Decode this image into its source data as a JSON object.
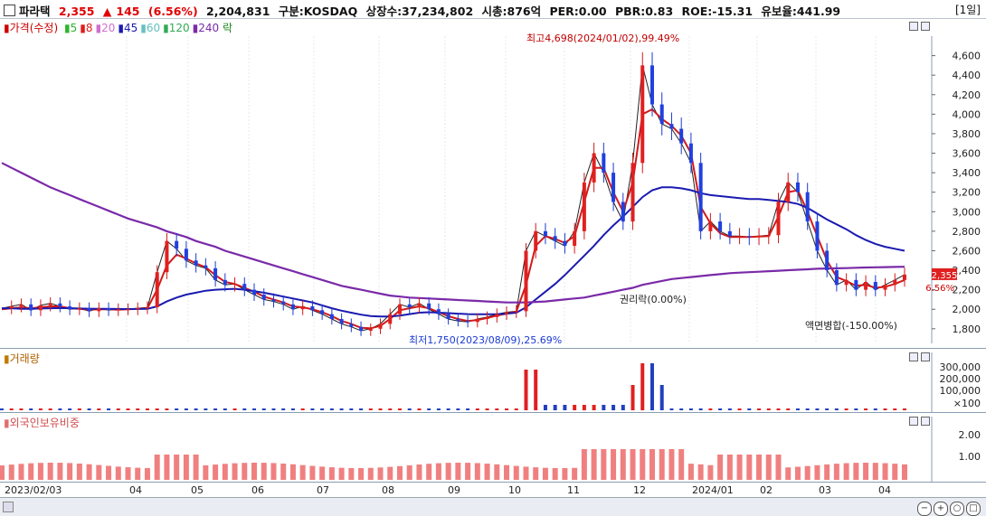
{
  "header": {
    "name": "파라택",
    "price": "2,355",
    "change_arrow": "▲",
    "change": "145",
    "change_pct": "(6.56%)",
    "volume": "2,204,831",
    "market": "구분:KOSDAQ",
    "shares": "상장수:37,234,802",
    "mktcap": "시총:876억",
    "per": "PER:0.00",
    "pbr": "PBR:0.83",
    "roe": "ROE:-15.31",
    "float": "유보율:441.99",
    "timeframe": "[1일]"
  },
  "legend": {
    "price_label": "가격(수정)",
    "ma": [
      {
        "label": "5",
        "color": "#2db52d"
      },
      {
        "label": "8",
        "color": "#e01c1c"
      },
      {
        "label": "20",
        "color": "#d070d0"
      },
      {
        "label": "45",
        "color": "#1a1ab0"
      },
      {
        "label": "60",
        "color": "#66c0c0"
      },
      {
        "label": "120",
        "color": "#33aa55"
      },
      {
        "label": "240",
        "color": "#7a2aa8"
      }
    ],
    "extra": "락"
  },
  "annotations": {
    "high": "최고4,698(2024/01/02),99.49%",
    "low": "최저1,750(2023/08/09),25.69%",
    "rights": "권리락(0.00%)",
    "split": "액면병합(-150.00%)",
    "current_price": "2,355",
    "current_pct": "6.56%"
  },
  "chart_data": {
    "type": "line",
    "title": "",
    "price_axis": [
      "4,600",
      "4,400",
      "4,200",
      "4,000",
      "3,800",
      "3,600",
      "3,400",
      "3,200",
      "3,000",
      "2,800",
      "2,600",
      "2,400",
      "2,200",
      "2,000",
      "1,800"
    ],
    "x_labels": [
      "2023/02/03",
      "04",
      "05",
      "06",
      "07",
      "08",
      "09",
      "10",
      "11",
      "12",
      "2024/01",
      "02",
      "03",
      "04"
    ],
    "series": [
      {
        "name": "가격(수정)",
        "color": "#222222",
        "values": [
          2010,
          2030,
          2050,
          1990,
          2040,
          2060,
          2030,
          2000,
          2010,
          1980,
          2010,
          1990,
          2000,
          2000,
          2010,
          2020,
          2380,
          2700,
          2620,
          2500,
          2450,
          2420,
          2300,
          2250,
          2260,
          2200,
          2150,
          2100,
          2080,
          2050,
          2000,
          2030,
          1990,
          1950,
          1900,
          1850,
          1820,
          1780,
          1800,
          1850,
          1950,
          2050,
          2020,
          2060,
          2000,
          1950,
          1900,
          1880,
          1870,
          1900,
          1920,
          1950,
          1970,
          1980,
          2600,
          2800,
          2750,
          2700,
          2650,
          2800,
          3300,
          3600,
          3400,
          3100,
          2900,
          3500,
          4500,
          4100,
          3900,
          3850,
          3700,
          3500,
          2800,
          2900,
          2800,
          2750,
          2750,
          2740,
          2750,
          2760,
          3100,
          3300,
          3200,
          2900,
          2600,
          2400,
          2250,
          2300,
          2200,
          2280,
          2200,
          2250,
          2300,
          2355
        ]
      },
      {
        "name": "8",
        "color": "#d21a1a",
        "values": [
          2000,
          2010,
          2020,
          2010,
          2020,
          2030,
          2030,
          2010,
          2005,
          1995,
          2000,
          2000,
          1995,
          2000,
          2005,
          2010,
          2200,
          2450,
          2560,
          2520,
          2470,
          2430,
          2350,
          2280,
          2260,
          2220,
          2180,
          2130,
          2100,
          2070,
          2030,
          2020,
          2000,
          1970,
          1930,
          1880,
          1850,
          1810,
          1805,
          1830,
          1900,
          1990,
          2010,
          2030,
          2010,
          1970,
          1930,
          1900,
          1880,
          1890,
          1910,
          1935,
          1955,
          1975,
          2250,
          2650,
          2750,
          2720,
          2680,
          2750,
          3100,
          3450,
          3450,
          3200,
          3000,
          3300,
          4000,
          4050,
          3950,
          3880,
          3780,
          3600,
          3050,
          2880,
          2780,
          2740,
          2740,
          2740,
          2745,
          2750,
          2950,
          3200,
          3220,
          3000,
          2750,
          2500,
          2330,
          2290,
          2240,
          2250,
          2220,
          2230,
          2260,
          2300
        ]
      },
      {
        "name": "45",
        "color": "#1a1ab0",
        "values": [
          2010,
          2010,
          2005,
          2005,
          2008,
          2010,
          2012,
          2010,
          2008,
          2006,
          2005,
          2004,
          2003,
          2002,
          2003,
          2005,
          2030,
          2080,
          2120,
          2150,
          2170,
          2190,
          2200,
          2205,
          2210,
          2200,
          2185,
          2170,
          2150,
          2130,
          2110,
          2090,
          2070,
          2040,
          2010,
          1985,
          1965,
          1945,
          1930,
          1925,
          1925,
          1935,
          1950,
          1965,
          1970,
          1965,
          1960,
          1955,
          1950,
          1948,
          1948,
          1950,
          1955,
          1965,
          2020,
          2100,
          2180,
          2260,
          2350,
          2450,
          2550,
          2650,
          2760,
          2860,
          2950,
          3050,
          3150,
          3220,
          3250,
          3250,
          3240,
          3220,
          3190,
          3170,
          3160,
          3150,
          3140,
          3130,
          3130,
          3120,
          3110,
          3100,
          3080,
          3040,
          2980,
          2920,
          2870,
          2820,
          2760,
          2710,
          2670,
          2640,
          2620,
          2600
        ]
      },
      {
        "name": "240",
        "color": "#7a2aa8",
        "values": [
          3500,
          3450,
          3400,
          3350,
          3300,
          3250,
          3210,
          3170,
          3130,
          3090,
          3050,
          3010,
          2970,
          2930,
          2900,
          2870,
          2840,
          2800,
          2770,
          2740,
          2700,
          2670,
          2640,
          2600,
          2570,
          2540,
          2510,
          2480,
          2450,
          2420,
          2390,
          2360,
          2330,
          2300,
          2270,
          2240,
          2220,
          2200,
          2180,
          2160,
          2140,
          2130,
          2120,
          2115,
          2110,
          2105,
          2100,
          2095,
          2090,
          2085,
          2080,
          2075,
          2070,
          2070,
          2070,
          2075,
          2080,
          2090,
          2100,
          2110,
          2120,
          2140,
          2160,
          2180,
          2200,
          2220,
          2250,
          2270,
          2290,
          2310,
          2320,
          2330,
          2340,
          2350,
          2360,
          2370,
          2375,
          2380,
          2385,
          2390,
          2395,
          2400,
          2405,
          2410,
          2415,
          2418,
          2420,
          2422,
          2425,
          2428,
          2430,
          2432,
          2434,
          2436
        ]
      }
    ],
    "volume_axis": [
      "300,000",
      "200,000",
      "100,000",
      "×100"
    ],
    "volume_title": "거래량",
    "foreign_title": "외국인보유비중",
    "foreign_axis": [
      "2.00",
      "1.00"
    ],
    "ylim": [
      1650,
      4800
    ]
  }
}
